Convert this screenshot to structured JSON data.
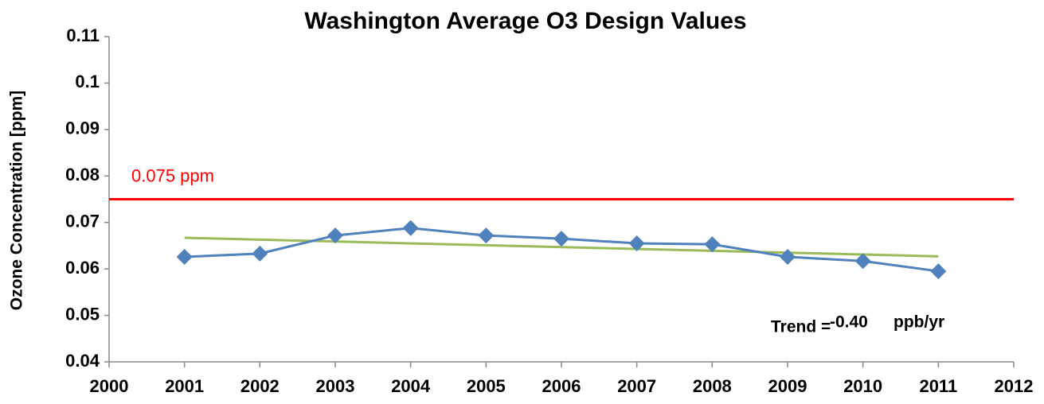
{
  "chart_data": {
    "type": "line",
    "title": "Washington Average O3 Design Values",
    "y_label": "Ozone Concentration [ppm]",
    "x": [
      2001,
      2002,
      2003,
      2004,
      2005,
      2006,
      2007,
      2008,
      2009,
      2010,
      2011
    ],
    "values": [
      0.0626,
      0.0633,
      0.0672,
      0.0688,
      0.0672,
      0.0665,
      0.0655,
      0.0653,
      0.0626,
      0.0617,
      0.0595
    ],
    "color": "#4f81bd",
    "trend_line": {
      "x": [
        2001,
        2011
      ],
      "values": [
        0.0667,
        0.0627
      ],
      "color": "#9bbb59"
    },
    "reference_line": {
      "value": 0.075,
      "label": "0.075 ppm",
      "color": "#ff0000"
    },
    "annotation": {
      "label": "Trend =",
      "value_text": "-0.40",
      "unit": "ppb/yr"
    },
    "xlim": [
      2000,
      2012
    ],
    "xticks": [
      2000,
      2001,
      2002,
      2003,
      2004,
      2005,
      2006,
      2007,
      2008,
      2009,
      2010,
      2011,
      2012
    ],
    "ylim": [
      0.04,
      0.11
    ],
    "yticks": [
      0.04,
      0.05,
      0.06,
      0.07,
      0.08,
      0.09,
      0.1,
      0.11
    ],
    "grid": false
  }
}
